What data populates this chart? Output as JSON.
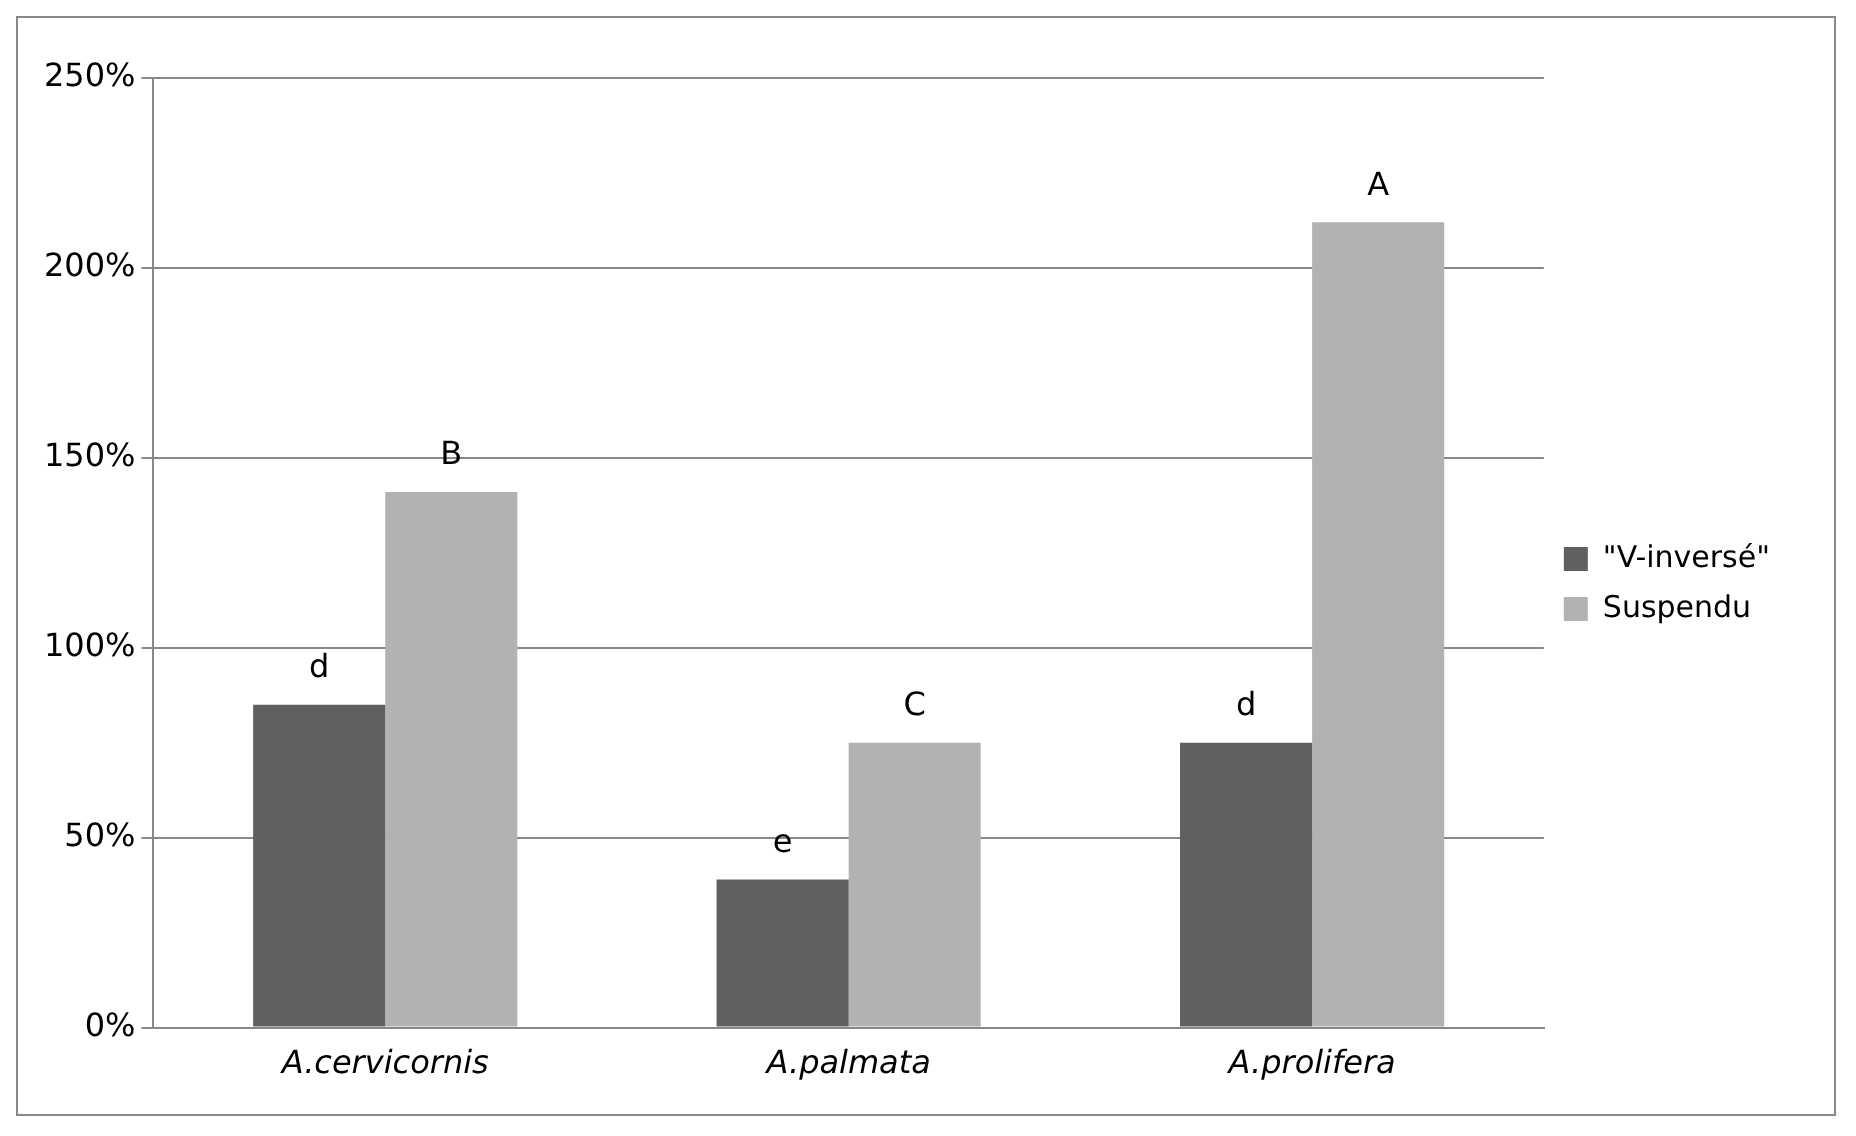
{
  "chart_data": {
    "type": "bar",
    "categories": [
      "A.cervicornis",
      "A.palmata",
      "A.prolifera"
    ],
    "series": [
      {
        "name": "\"V-inversé\"",
        "color": "#606060",
        "values": [
          85,
          39,
          75
        ],
        "value_labels": [
          "d",
          "e",
          "d"
        ]
      },
      {
        "name": "Suspendu",
        "color": "#b2b2b2",
        "values": [
          141,
          75,
          212
        ],
        "value_labels": [
          "B",
          "C",
          "A"
        ]
      }
    ],
    "ylim": [
      0,
      250
    ],
    "yticks": [
      {
        "value": 0,
        "label": "0%"
      },
      {
        "value": 50,
        "label": "50%"
      },
      {
        "value": 100,
        "label": "100%"
      },
      {
        "value": 150,
        "label": "150%"
      },
      {
        "value": 200,
        "label": "200%"
      },
      {
        "value": 250,
        "label": "250%"
      }
    ],
    "grid": "y",
    "legend": "right"
  }
}
